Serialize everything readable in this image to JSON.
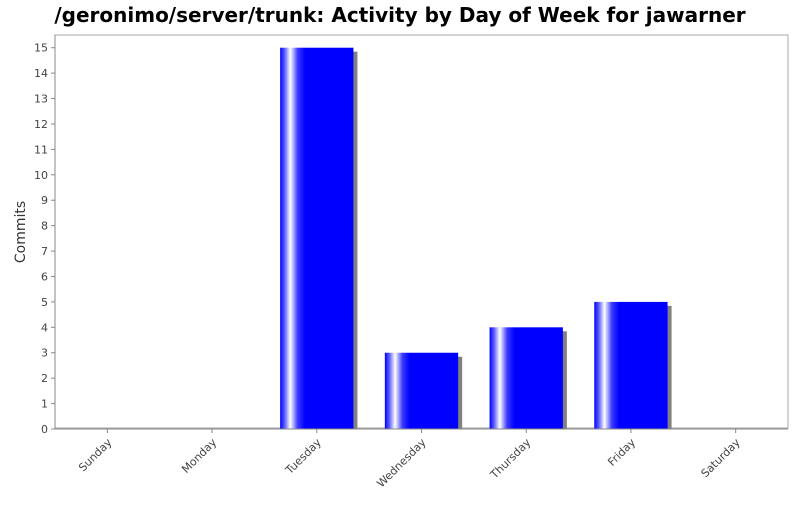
{
  "chart_data": {
    "type": "bar",
    "title": "/geronimo/server/trunk: Activity by Day of Week for jawarner",
    "xlabel": "",
    "ylabel": "Commits",
    "categories": [
      "Sunday",
      "Monday",
      "Tuesday",
      "Wednesday",
      "Thursday",
      "Friday",
      "Saturday"
    ],
    "values": [
      0,
      0,
      15,
      3,
      4,
      5,
      0
    ],
    "ylim": [
      0,
      15.5
    ],
    "yticks": [
      0,
      1,
      2,
      3,
      4,
      5,
      6,
      7,
      8,
      9,
      10,
      11,
      12,
      13,
      14,
      15
    ],
    "grid": false,
    "legend": "none",
    "colors": {
      "bar": "#0000ff",
      "shadow": "#808080",
      "highlight": "#ffffff",
      "axis": "#888888",
      "plot_border": "#aaaaaa"
    }
  }
}
